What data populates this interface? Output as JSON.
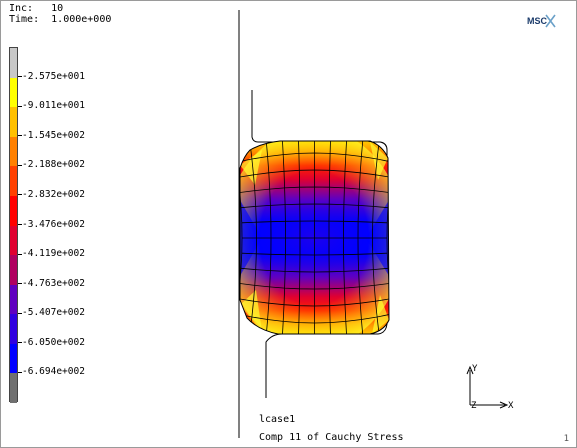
{
  "header": {
    "inc_label": "Inc:",
    "inc_value": "10",
    "time_label": "Time:",
    "time_value": "1.000e+000"
  },
  "legend": {
    "labels": [
      "-2.575e+001",
      "-9.011e+001",
      "-1.545e+002",
      "-2.188e+002",
      "-2.832e+002",
      "-3.476e+002",
      "-4.119e+002",
      "-4.763e+002",
      "-5.407e+002",
      "-6.050e+002",
      "-6.694e+002"
    ],
    "colors": [
      "#c8c8c8",
      "#ffff00",
      "#ffc000",
      "#ff8000",
      "#ff4000",
      "#ff0000",
      "#e00030",
      "#b00060",
      "#6000c0",
      "#3000e0",
      "#0000ff",
      "#707070"
    ]
  },
  "footer": {
    "case_name": "lcase1",
    "variable": "Comp 11 of Cauchy Stress",
    "page_number": "1"
  },
  "logo": {
    "text": "MSC",
    "icon": "msc-logo-icon"
  },
  "axes": {
    "y_label": "Y",
    "z_label": "Z",
    "x_label": "X"
  }
}
